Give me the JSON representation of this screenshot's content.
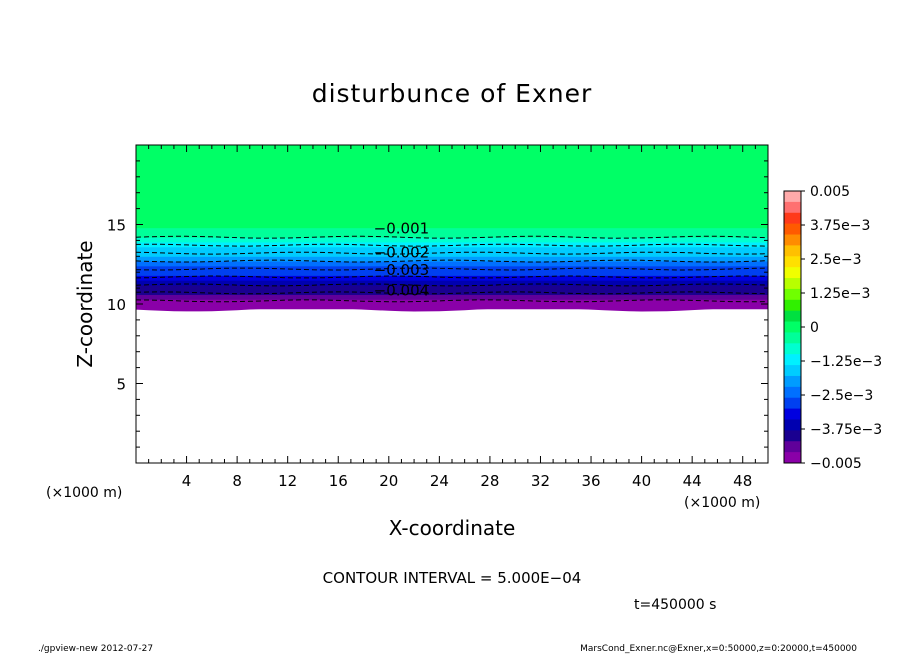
{
  "chart_data": {
    "type": "heatmap",
    "title": "disturbunce of Exner",
    "xlabel": "X-coordinate",
    "ylabel": "Z-coordinate",
    "x_unit": "(×1000 m)",
    "y_unit": "(×1000 m)",
    "xlim": [
      0,
      50
    ],
    "ylim": [
      0,
      20
    ],
    "x_ticks": [
      "4",
      "8",
      "12",
      "16",
      "20",
      "24",
      "28",
      "32",
      "36",
      "40",
      "44",
      "48"
    ],
    "y_ticks": [
      "5",
      "10",
      "15"
    ],
    "z_profile": {
      "z": [
        9.7,
        10.0,
        10.3,
        10.6,
        10.9,
        11.2,
        11.5,
        11.8,
        12.1,
        12.4,
        12.7,
        13.0,
        13.3,
        13.6,
        13.9,
        14.2,
        14.5,
        14.8,
        15.0
      ],
      "value": [
        -0.005,
        -0.0047,
        -0.0044,
        -0.0041,
        -0.0038,
        -0.0035,
        -0.0032,
        -0.0029,
        -0.0026,
        -0.0023,
        -0.002,
        -0.0017,
        -0.0014,
        -0.0011,
        -0.0008,
        -0.0005,
        -0.0003,
        -0.0001,
        0
      ]
    },
    "contours": [
      {
        "label": "−0.001",
        "z": 14.8
      },
      {
        "label": "−0.002",
        "z": 13.3
      },
      {
        "label": "−0.003",
        "z": 12.2
      },
      {
        "label": "−0.004",
        "z": 10.9
      }
    ],
    "colorbar": {
      "labels": [
        "0.005",
        "3.75e−3",
        "2.5e−3",
        "1.25e−3",
        "0",
        "−1.25e−3",
        "−2.5e−3",
        "−3.75e−3",
        "−0.005"
      ],
      "colors": [
        "#ffaaaa",
        "#ff7070",
        "#ff3a1a",
        "#ff5a00",
        "#ff8c00",
        "#ffc000",
        "#ffe000",
        "#f0ff00",
        "#b8ff00",
        "#70ff00",
        "#30f000",
        "#00e040",
        "#00ff66",
        "#00ff99",
        "#00ffd0",
        "#00f0ff",
        "#00ccff",
        "#009cff",
        "#0070ff",
        "#0040f0",
        "#0000e0",
        "#0000b0",
        "#1a0090",
        "#60009a",
        "#8a00a8"
      ]
    }
  },
  "contour_interval": "CONTOUR INTERVAL = 5.000E−04",
  "time_label": "t=450000 s",
  "footer_left": "./gpview-new  2012-07-27",
  "footer_right": "MarsCond_Exner.nc@Exner,x=0:50000,z=0:20000,t=450000"
}
